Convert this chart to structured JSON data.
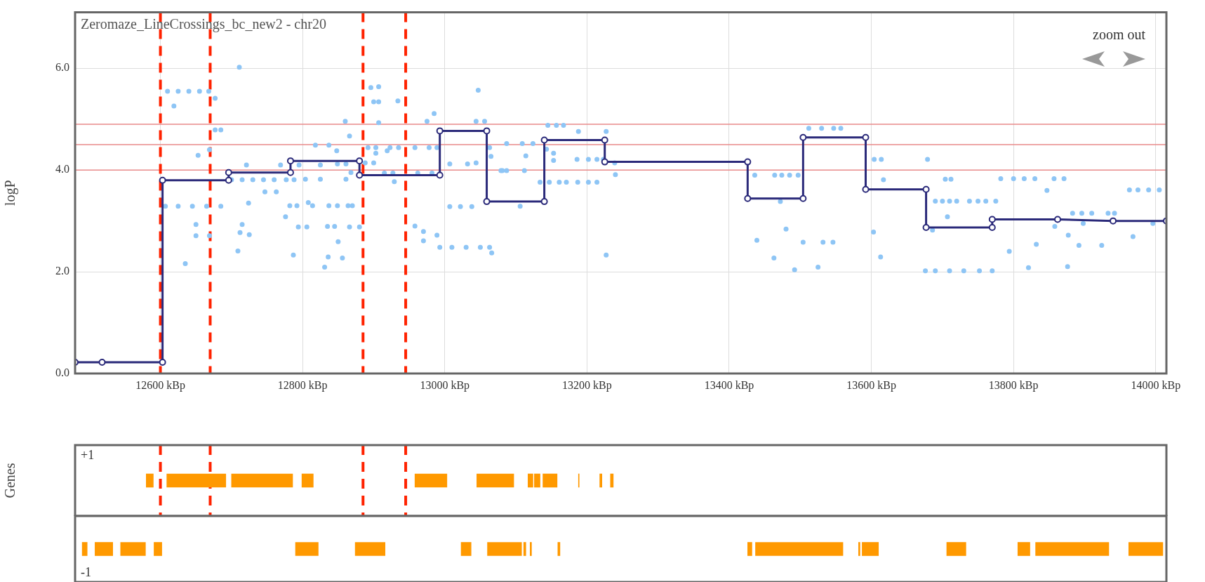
{
  "chart_data": [
    {
      "type": "scatter",
      "title": "Zeromaze_LineCrossings_bc_new2 - chr20",
      "ylabel": "logP",
      "annotations": [
        "zoom out"
      ],
      "grid": true,
      "xlim": [
        12480,
        14015
      ],
      "ylim": [
        0,
        7.1
      ],
      "xticks": [
        {
          "value": 12600,
          "label": "12600 kBp"
        },
        {
          "value": 12800,
          "label": "12800 kBp"
        },
        {
          "value": 13000,
          "label": "13000 kBp"
        },
        {
          "value": 13200,
          "label": "13200 kBp"
        },
        {
          "value": 13400,
          "label": "13400 kBp"
        },
        {
          "value": 13600,
          "label": "13600 kBp"
        },
        {
          "value": 13800,
          "label": "13800 kBp"
        },
        {
          "value": 14000,
          "label": "14000 kBp"
        }
      ],
      "yticks": [
        {
          "value": 0,
          "label": "0.0"
        },
        {
          "value": 2,
          "label": "2.0"
        },
        {
          "value": 4,
          "label": "4.0"
        },
        {
          "value": 6,
          "label": "6.0"
        }
      ],
      "ref_lines": [
        {
          "axis": "y",
          "value": 4.9,
          "color": "#e88a8a"
        },
        {
          "axis": "y",
          "value": 4.5,
          "color": "#e88a8a"
        },
        {
          "axis": "y",
          "value": 4.0,
          "color": "#e88a8a"
        },
        {
          "axis": "x",
          "value": 12600,
          "color": "#ff2200",
          "line_style": "dashed"
        },
        {
          "axis": "x",
          "value": 12670,
          "color": "#ff2200",
          "line_style": "dashed"
        },
        {
          "axis": "x",
          "value": 12885,
          "color": "#ff2200",
          "line_style": "dashed"
        },
        {
          "axis": "x",
          "value": 12945,
          "color": "#ff2200",
          "line_style": "dashed"
        }
      ],
      "series": [
        {
          "type": "scatter",
          "color": "#8ec5f5",
          "marker": "circle",
          "x": [
            12711,
            12610,
            12625,
            12640,
            12655,
            12668,
            12619,
            12677,
            12677,
            12685,
            12653,
            12669,
            12721,
            12700,
            12715,
            12730,
            12745,
            12760,
            12747,
            12763,
            12607,
            12625,
            12645,
            12665,
            12685,
            12650,
            12650,
            12669,
            12635,
            12715,
            12712,
            12725,
            12709,
            12724,
            12769,
            12777,
            12788,
            12795,
            12804,
            12825,
            12825,
            12818,
            12837,
            12848,
            12849,
            12861,
            12860,
            12866,
            12861,
            12868,
            12782,
            12792,
            12808,
            12814,
            12837,
            12849,
            12864,
            12870,
            12776,
            12794,
            12806,
            12835,
            12845,
            12866,
            12880,
            12850,
            12787,
            12836,
            12856,
            12831,
            12896,
            12907,
            12900,
            12907,
            12934,
            12907,
            12892,
            12903,
            12923,
            12935,
            12958,
            12978,
            12989,
            12903,
            12919,
            12888,
            12900,
            12915,
            12927,
            12962,
            12982,
            12929,
            12975,
            12985,
            13047,
            13044,
            13056,
            13007,
            13032,
            13044,
            13063,
            13065,
            13081,
            13007,
            13022,
            13038,
            12958,
            12970,
            12989,
            12970,
            12993,
            13010,
            13030,
            13050,
            13063,
            13066,
            13087,
            13109,
            13124,
            13114,
            13079,
            13087,
            13112,
            13106,
            13145,
            13157,
            13167,
            13188,
            13227,
            13143,
            13153,
            13153,
            13186,
            13202,
            13214,
            13223,
            13239,
            13240,
            13134,
            13147,
            13161,
            13171,
            13187,
            13202,
            13214,
            13227,
            13436,
            13464,
            13474,
            13485,
            13497,
            13472,
            13512,
            13530,
            13547,
            13557,
            13604,
            13614,
            13617,
            13480,
            13439,
            13504,
            13532,
            13546,
            13463,
            13492,
            13525,
            13603,
            13613,
            13679,
            13704,
            13712,
            13690,
            13700,
            13710,
            13720,
            13707,
            13738,
            13750,
            13761,
            13775,
            13782,
            13800,
            13815,
            13830,
            13857,
            13871,
            13847,
            13858,
            13883,
            13896,
            13910,
            13933,
            13942,
            13898,
            13877,
            13832,
            13892,
            13924,
            13968,
            13794,
            13821,
            13876,
            13676,
            13690,
            13710,
            13730,
            13752,
            13770,
            13996,
            13963,
            13975,
            13990,
            14005,
            13686
          ],
          "values": [
            6.02,
            5.55,
            5.55,
            5.55,
            5.55,
            5.55,
            5.26,
            5.41,
            4.79,
            4.79,
            4.29,
            4.4,
            4.1,
            3.81,
            3.81,
            3.81,
            3.81,
            3.81,
            3.57,
            3.57,
            3.29,
            3.29,
            3.29,
            3.29,
            3.29,
            2.93,
            2.71,
            2.71,
            2.16,
            2.93,
            2.77,
            2.73,
            2.41,
            3.35,
            4.1,
            3.81,
            3.81,
            4.1,
            3.82,
            3.82,
            4.1,
            4.49,
            4.49,
            4.38,
            4.12,
            4.12,
            4.96,
            4.67,
            3.82,
            3.95,
            3.3,
            3.3,
            3.36,
            3.3,
            3.3,
            3.3,
            3.3,
            3.3,
            3.08,
            2.88,
            2.88,
            2.89,
            2.89,
            2.88,
            2.88,
            2.59,
            2.33,
            2.29,
            2.27,
            2.09,
            5.62,
            5.64,
            5.34,
            5.34,
            5.36,
            4.93,
            4.44,
            4.44,
            4.44,
            4.44,
            4.44,
            4.44,
            4.44,
            4.33,
            4.38,
            4.14,
            4.14,
            3.94,
            3.94,
            3.94,
            3.94,
            3.77,
            4.96,
            5.11,
            5.57,
            4.96,
            4.96,
            4.12,
            4.12,
            4.14,
            4.44,
            4.27,
            3.99,
            3.28,
            3.28,
            3.28,
            2.9,
            2.79,
            2.72,
            2.61,
            2.48,
            2.48,
            2.48,
            2.48,
            2.48,
            2.37,
            4.52,
            4.52,
            4.52,
            4.28,
            3.99,
            3.99,
            3.99,
            3.29,
            4.88,
            4.88,
            4.88,
            4.76,
            4.76,
            4.41,
            4.33,
            4.19,
            4.21,
            4.21,
            4.21,
            4.21,
            4.14,
            3.91,
            3.76,
            3.76,
            3.76,
            3.76,
            3.76,
            3.76,
            3.76,
            2.33,
            3.9,
            3.9,
            3.9,
            3.9,
            3.9,
            3.38,
            4.82,
            4.82,
            4.82,
            4.82,
            4.21,
            4.21,
            3.81,
            2.84,
            2.62,
            2.58,
            2.58,
            2.58,
            2.27,
            2.04,
            2.09,
            2.78,
            2.29,
            4.21,
            3.82,
            3.82,
            3.39,
            3.39,
            3.39,
            3.39,
            3.08,
            3.39,
            3.39,
            3.39,
            3.39,
            3.83,
            3.83,
            3.83,
            3.83,
            3.83,
            3.83,
            3.6,
            2.89,
            3.15,
            3.15,
            3.15,
            3.15,
            3.15,
            2.95,
            2.72,
            2.54,
            2.52,
            2.52,
            2.69,
            2.4,
            2.08,
            2.1,
            2.02,
            2.02,
            2.02,
            2.02,
            2.02,
            2.02,
            2.95,
            3.61,
            3.61,
            3.61,
            3.61,
            2.82
          ]
        },
        {
          "type": "line",
          "color": "#2b2a7a",
          "marker": "circle",
          "line_style": "solid",
          "x": [
            12480,
            12518,
            12603,
            12603,
            12696,
            12696,
            12783,
            12783,
            12880,
            12880,
            12993,
            12993,
            13059,
            13059,
            13140,
            13140,
            13225,
            13225,
            13426,
            13426,
            13504,
            13504,
            13592,
            13592,
            13677,
            13677,
            13770,
            13770,
            13862,
            13940,
            14015
          ],
          "values": [
            0.22,
            0.22,
            0.22,
            3.8,
            3.8,
            3.95,
            3.95,
            4.18,
            4.18,
            3.9,
            3.9,
            4.77,
            4.77,
            3.38,
            3.38,
            4.59,
            4.59,
            4.16,
            4.16,
            3.44,
            3.44,
            4.64,
            4.64,
            3.62,
            3.62,
            2.87,
            2.87,
            3.03,
            3.03,
            3.0,
            3.0
          ]
        }
      ]
    },
    {
      "type": "bar",
      "orientation": "horizontal",
      "ylabel": "Genes",
      "categories": [
        "+1"
      ],
      "xlim": [
        12480,
        14015
      ],
      "tick_labels": "y",
      "ref_lines": [
        {
          "axis": "x",
          "value": 12600,
          "color": "#ff2200",
          "line_style": "dashed"
        },
        {
          "axis": "x",
          "value": 12670,
          "color": "#ff2200",
          "line_style": "dashed"
        },
        {
          "axis": "x",
          "value": 12885,
          "color": "#ff2200",
          "line_style": "dashed"
        },
        {
          "axis": "x",
          "value": 12945,
          "color": "#ff2200",
          "line_style": "dashed"
        }
      ],
      "series": [
        {
          "color": "#ff9900",
          "base": [
            12580
          ],
          "values": [
            10
          ]
        },
        {
          "color": "#ff9900",
          "base": [
            12609
          ],
          "values": [
            83
          ]
        },
        {
          "color": "#ff9900",
          "base": [
            12700
          ],
          "values": [
            86
          ]
        },
        {
          "color": "#ff9900",
          "base": [
            12799
          ],
          "values": [
            16
          ]
        },
        {
          "color": "#ff9900",
          "base": [
            12958
          ],
          "values": [
            45
          ]
        },
        {
          "color": "#ff9900",
          "base": [
            13045
          ],
          "values": [
            52
          ]
        },
        {
          "color": "#ff9900",
          "base": [
            13117
          ],
          "values": [
            7
          ]
        },
        {
          "color": "#ff9900",
          "base": [
            13126
          ],
          "values": [
            8
          ]
        },
        {
          "color": "#ff9900",
          "base": [
            13138
          ],
          "values": [
            20
          ]
        },
        {
          "color": "#ff9900",
          "base": [
            13188
          ],
          "values": [
            1
          ]
        },
        {
          "color": "#ff9900",
          "base": [
            13218
          ],
          "values": [
            3
          ]
        },
        {
          "color": "#ff9900",
          "base": [
            13233
          ],
          "values": [
            4
          ]
        }
      ]
    },
    {
      "type": "bar",
      "orientation": "horizontal",
      "categories": [
        "-1"
      ],
      "xlim": [
        12480,
        14015
      ],
      "tick_labels": "y",
      "series": [
        {
          "color": "#ff9900",
          "base": [
            12490
          ],
          "values": [
            7
          ]
        },
        {
          "color": "#ff9900",
          "base": [
            12508
          ],
          "values": [
            25
          ]
        },
        {
          "color": "#ff9900",
          "base": [
            12544
          ],
          "values": [
            35
          ]
        },
        {
          "color": "#ff9900",
          "base": [
            12591
          ],
          "values": [
            11
          ]
        },
        {
          "color": "#ff9900",
          "base": [
            12790
          ],
          "values": [
            32
          ]
        },
        {
          "color": "#ff9900",
          "base": [
            12874
          ],
          "values": [
            42
          ]
        },
        {
          "color": "#ff9900",
          "base": [
            13023
          ],
          "values": [
            14
          ]
        },
        {
          "color": "#ff9900",
          "base": [
            13060
          ],
          "values": [
            48
          ]
        },
        {
          "color": "#ff9900",
          "base": [
            13111
          ],
          "values": [
            3
          ]
        },
        {
          "color": "#ff9900",
          "base": [
            13120
          ],
          "values": [
            2
          ]
        },
        {
          "color": "#ff9900",
          "base": [
            13159
          ],
          "values": [
            3
          ]
        },
        {
          "color": "#ff9900",
          "base": [
            13426
          ],
          "values": [
            6
          ]
        },
        {
          "color": "#ff9900",
          "base": [
            13437
          ],
          "values": [
            123
          ]
        },
        {
          "color": "#ff9900",
          "base": [
            13582
          ],
          "values": [
            2
          ]
        },
        {
          "color": "#ff9900",
          "base": [
            13587
          ],
          "values": [
            23
          ]
        },
        {
          "color": "#ff9900",
          "base": [
            13706
          ],
          "values": [
            27
          ]
        },
        {
          "color": "#ff9900",
          "base": [
            13806
          ],
          "values": [
            17
          ]
        },
        {
          "color": "#ff9900",
          "base": [
            13831
          ],
          "values": [
            103
          ]
        },
        {
          "color": "#ff9900",
          "base": [
            13962
          ],
          "values": [
            48
          ]
        }
      ]
    }
  ]
}
